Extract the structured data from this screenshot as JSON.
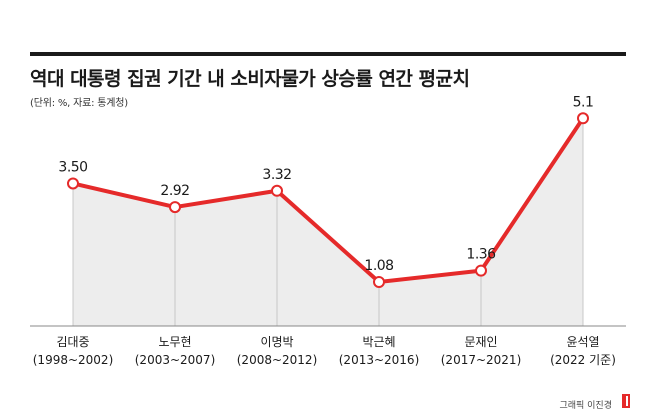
{
  "header": {
    "title": "역대 대통령 집권 기간 내 소비자물가 상승률 연간 평균치",
    "subtitle": "(단위: %, 자료: 통계청)"
  },
  "chart_data": {
    "type": "area",
    "categories": [
      "김대중\n(1998~2002)",
      "노무현\n(2003~2007)",
      "이명박\n(2008~2012)",
      "박근혜\n(2013~2016)",
      "문재인\n(2017~2021)",
      "윤석열\n(2022 기준)"
    ],
    "values": [
      3.5,
      2.92,
      3.32,
      1.08,
      1.36,
      5.1
    ],
    "value_labels": [
      "3.50",
      "2.92",
      "3.32",
      "1.08",
      "1.36",
      "5.1"
    ],
    "title": "역대 대통령 집권 기간 내 소비자물가 상승률 연간 평균치",
    "xlabel": "",
    "ylabel": "",
    "ylim": [
      0,
      5.5
    ],
    "grid": false,
    "legend": "none",
    "colors": {
      "line": "#e52a2a",
      "fill": "#ededed",
      "marker_fill": "#ffffff",
      "dropline": "#c8c8c8",
      "baseline": "#888888"
    }
  },
  "footer": {
    "credit": "그래픽 이진경"
  }
}
